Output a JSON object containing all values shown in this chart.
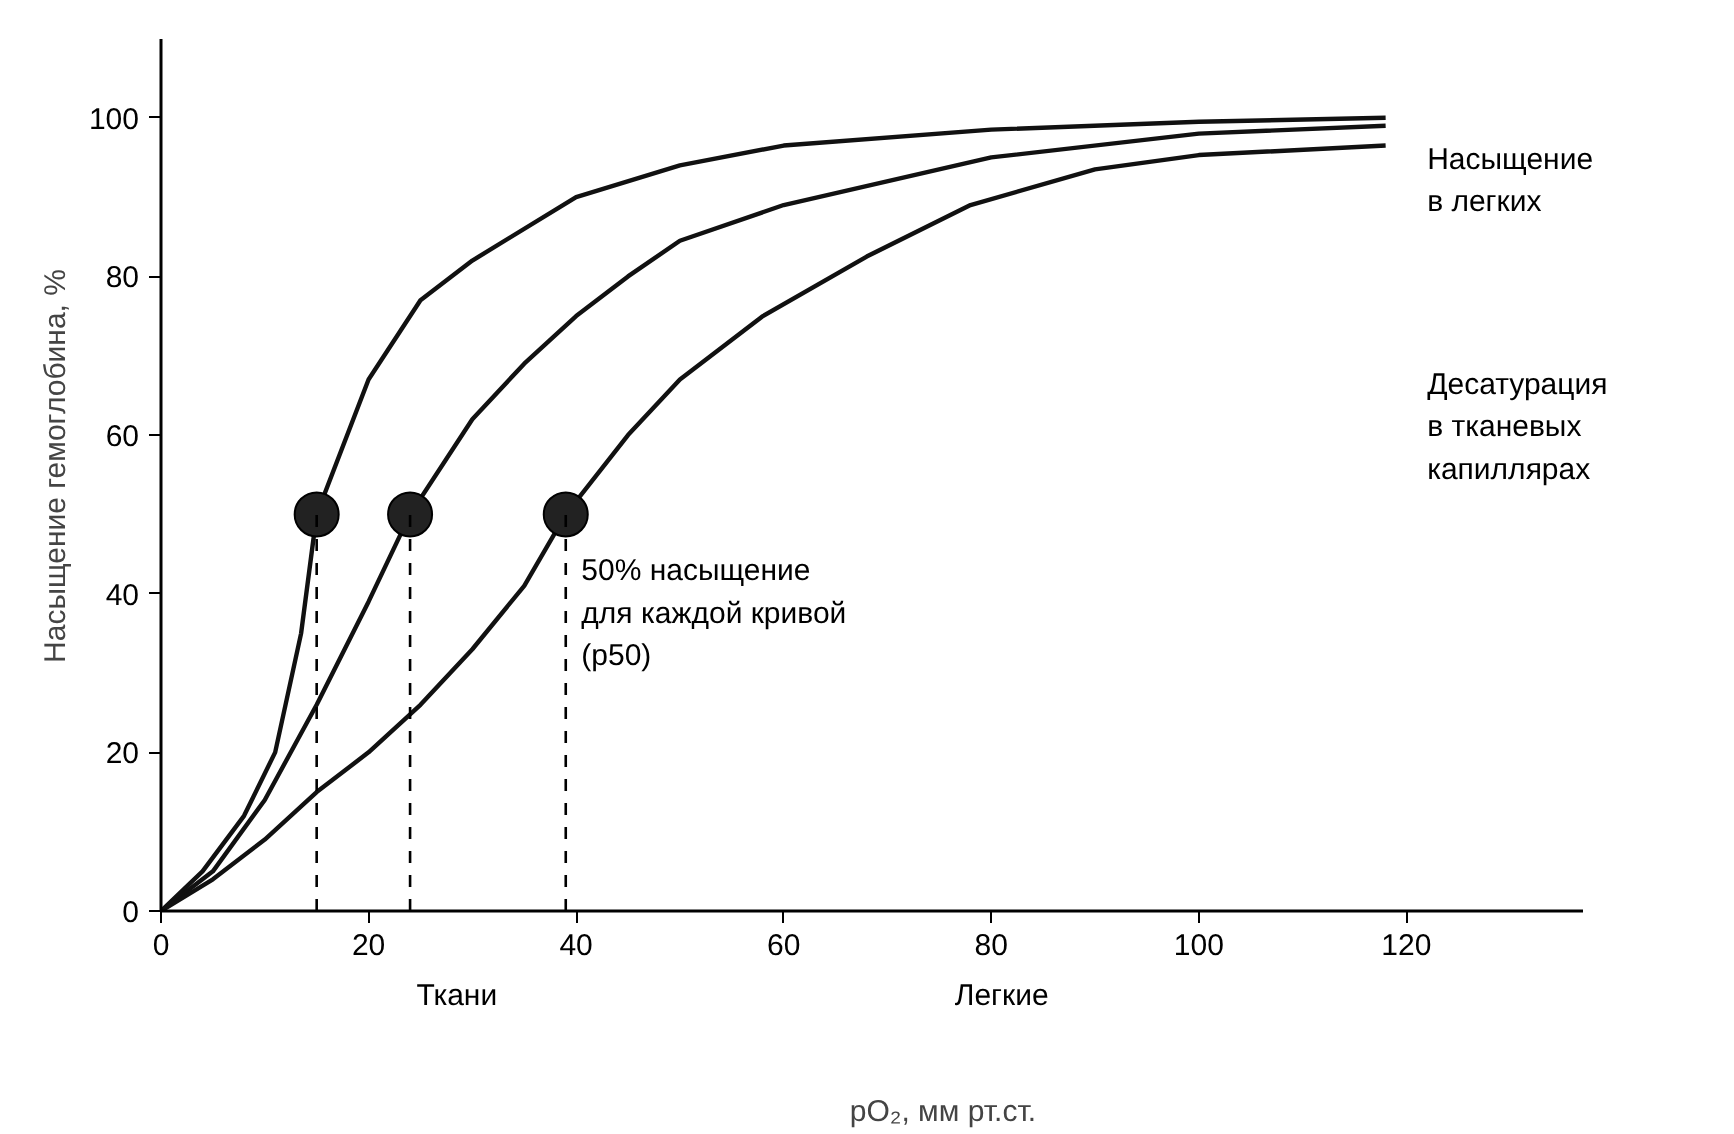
{
  "chart_data": {
    "type": "line",
    "xlabel": "pO₂, мм рт.ст.",
    "ylabel": "Насыщение гемоглобина, %",
    "xlim": [
      0,
      137
    ],
    "ylim": [
      0,
      110
    ],
    "xticks": [
      0,
      20,
      40,
      60,
      80,
      100,
      120
    ],
    "yticks": [
      0,
      20,
      40,
      60,
      80,
      100
    ],
    "grid": false,
    "line_style": "solid",
    "marker": "none",
    "series": [
      {
        "color": "#111111",
        "x": [
          0,
          4,
          8,
          11,
          13.5,
          15,
          20,
          25,
          30,
          40,
          50,
          60,
          80,
          100,
          118
        ],
        "values": [
          0,
          5,
          12,
          20,
          35,
          50,
          67,
          77,
          82,
          90,
          94,
          96.5,
          98.5,
          99.5,
          100
        ]
      },
      {
        "color": "#111111",
        "x": [
          0,
          5,
          10,
          15,
          20,
          24,
          30,
          35,
          40,
          45,
          50,
          60,
          80,
          100,
          118
        ],
        "values": [
          0,
          5,
          14,
          26,
          39,
          50,
          62,
          69,
          75,
          80,
          84.5,
          89,
          95,
          98,
          99
        ]
      },
      {
        "color": "#111111",
        "x": [
          0,
          5,
          10,
          15,
          20,
          25,
          30,
          35,
          39,
          45,
          50,
          58,
          68,
          78,
          90,
          100,
          118
        ],
        "values": [
          0,
          4,
          9,
          15,
          20,
          26,
          33,
          41,
          50,
          60,
          67,
          75,
          82.5,
          89,
          93.5,
          95.3,
          96.5
        ]
      },
      {
        "type": "scatter",
        "marker": "circle",
        "color": "#222222",
        "x": [
          15,
          24,
          39
        ],
        "values": [
          50,
          50,
          50
        ]
      }
    ],
    "ref_lines": [
      {
        "axis": "x",
        "value": 15,
        "line_style": "dashed"
      },
      {
        "axis": "x",
        "value": 24,
        "line_style": "dashed"
      },
      {
        "axis": "x",
        "value": 39,
        "line_style": "dashed"
      }
    ],
    "annotations": [
      "50% насыщение\nдля каждой кривой\n(p50)",
      "Насыщение\nв легких",
      "Десатурация\nв тканевых\nкапиллярах",
      "Ткани",
      "Легкие"
    ]
  }
}
